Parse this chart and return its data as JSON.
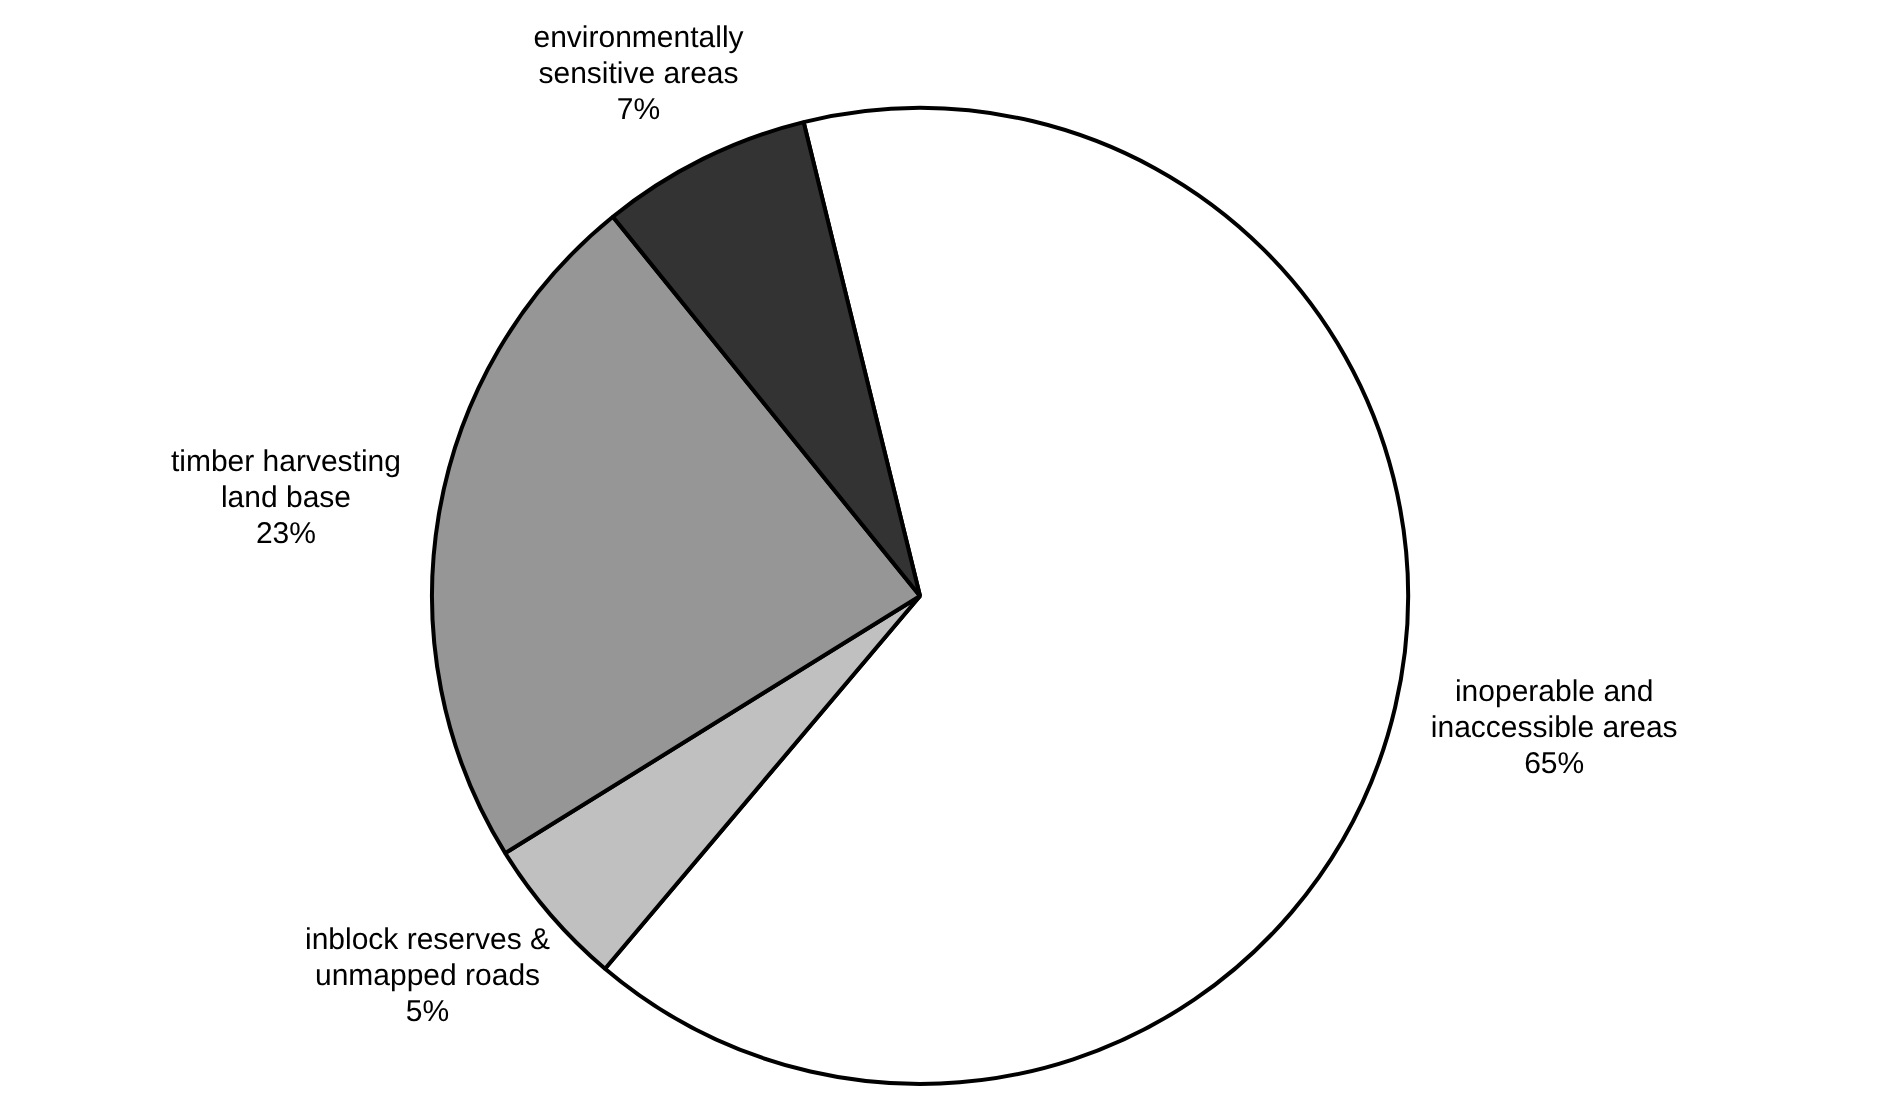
{
  "chart_data": {
    "type": "pie",
    "categories": [
      "inoperable and inaccessible areas",
      "inblock reserves & unmapped roads",
      "timber harvesting land base",
      "environmentally sensitive areas"
    ],
    "values": [
      65,
      5,
      23,
      7
    ],
    "colors": [
      "#ffffff",
      "#c0c0c0",
      "#969696",
      "#333333"
    ],
    "value_labels": [
      "65%",
      "5%",
      "23%",
      "7%"
    ],
    "legend": false
  }
}
